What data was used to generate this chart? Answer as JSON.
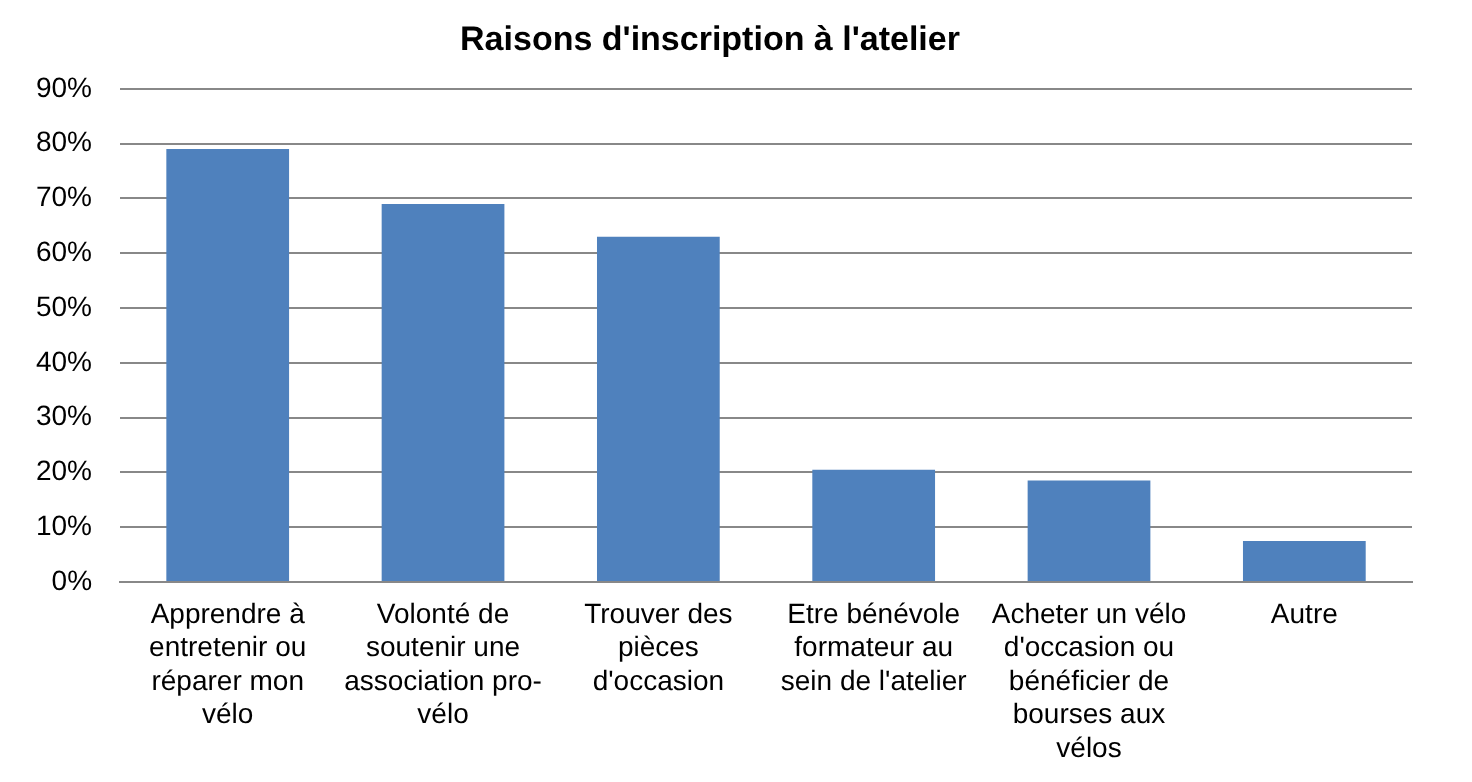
{
  "chart_data": {
    "type": "bar",
    "title": "Raisons d'inscription à l'atelier",
    "categories": [
      "Apprendre à entretenir ou réparer mon vélo",
      "Volonté de soutenir une association pro-vélo",
      "Trouver des pièces d'occasion",
      "Etre bénévole formateur au sein de l'atelier",
      "Acheter un vélo d'occasion ou bénéficier de bourses aux vélos",
      "Autre"
    ],
    "values": [
      79,
      69,
      63,
      20.5,
      18.5,
      7.5
    ],
    "color": "#4f81bd",
    "ylim": [
      0,
      90
    ],
    "yticks": [
      {
        "value": 0,
        "label": "0%"
      },
      {
        "value": 10,
        "label": "10%"
      },
      {
        "value": 20,
        "label": "20%"
      },
      {
        "value": 30,
        "label": "30%"
      },
      {
        "value": 40,
        "label": "40%"
      },
      {
        "value": 50,
        "label": "50%"
      },
      {
        "value": 60,
        "label": "60%"
      },
      {
        "value": 70,
        "label": "70%"
      },
      {
        "value": 80,
        "label": "80%"
      },
      {
        "value": 90,
        "label": "90%"
      }
    ],
    "grid": "y"
  }
}
